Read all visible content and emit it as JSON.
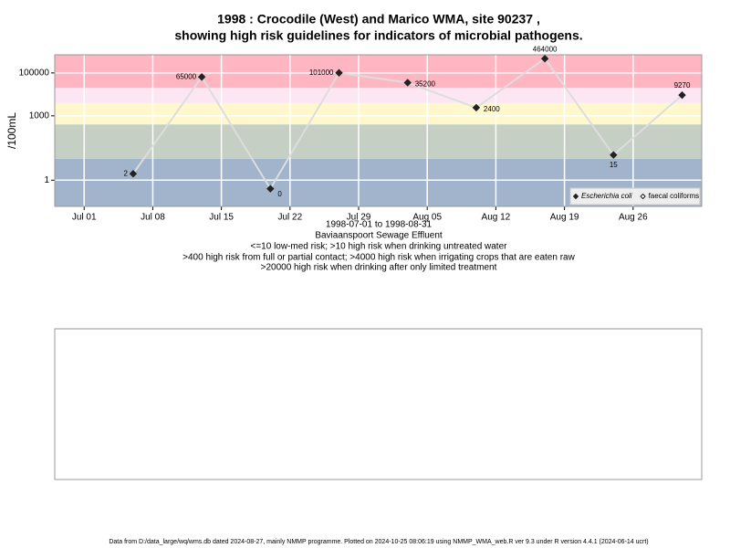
{
  "chart_data": {
    "type": "line",
    "title": "1998 : Crocodile (West) and Marico WMA, site 90237 ,",
    "subtitle": "showing high risk guidelines for indicators of microbial pathogens.",
    "y_label": "/100mL",
    "x": [
      "1998-07-06",
      "1998-07-13",
      "1998-07-20",
      "1998-07-27",
      "1998-08-03",
      "1998-08-10",
      "1998-08-17",
      "1998-08-24",
      "1998-08-31"
    ],
    "series": [
      {
        "name": "Escherichia coli",
        "color": "#222222",
        "line_color": "#dddddd",
        "marker": "filled",
        "values": [
          2,
          65000,
          0.4,
          101000,
          35200,
          2400,
          464000,
          15,
          9270
        ],
        "value_labels": [
          "2",
          "65000",
          "0",
          "101000",
          "35200",
          "2400",
          "464000",
          "15",
          "9270"
        ]
      },
      {
        "name": "faecal coliforms",
        "color": "#222222",
        "marker": "hollow",
        "values": [
          null,
          null,
          null,
          null,
          null,
          null,
          null,
          null,
          null
        ]
      }
    ],
    "log_y": true,
    "ylim": [
      0.06,
      700000
    ],
    "yticks": [
      1,
      1000,
      100000
    ],
    "xlim": [
      "1998-06-28",
      "1998-09-02"
    ],
    "xticks": [
      {
        "value": "1998-07-01",
        "label": "Jul 01"
      },
      {
        "value": "1998-07-08",
        "label": "Jul 08"
      },
      {
        "value": "1998-07-15",
        "label": "Jul 15"
      },
      {
        "value": "1998-07-22",
        "label": "Jul 22"
      },
      {
        "value": "1998-07-29",
        "label": "Jul 29"
      },
      {
        "value": "1998-08-05",
        "label": "Aug 05"
      },
      {
        "value": "1998-08-12",
        "label": "Aug 12"
      },
      {
        "value": "1998-08-19",
        "label": "Aug 19"
      },
      {
        "value": "1998-08-26",
        "label": "Aug 26"
      }
    ],
    "grid": true,
    "legend_position": "bottom-right",
    "thresholds": [
      10,
      400,
      4000,
      20000
    ],
    "band_colors": [
      "#a2b4cc",
      "#c5cfc4",
      "#fff8cc",
      "#fce6f3",
      "#ffb5c2"
    ],
    "date_range": "1998-07-01 to 1998-08-31",
    "site_name": "Baviaanspoort Sewage Effluent",
    "guideline_notes": [
      "<=10 low-med risk; >10 high risk when drinking untreated water",
      ">400 high risk from full or partial contact; >4000 high risk when irrigating crops that are eaten raw",
      ">20000 high risk when drinking after only limited treatment"
    ],
    "footer": "Data from D:/data_large/wq/wms.db dated 2024-08-27, mainly NMMP programme. Plotted on 2024-10-25 08:06:19 using NMMP_WMA_web.R ver 9.3 under R version 4.4.1 (2024-06-14 ucrt)"
  }
}
